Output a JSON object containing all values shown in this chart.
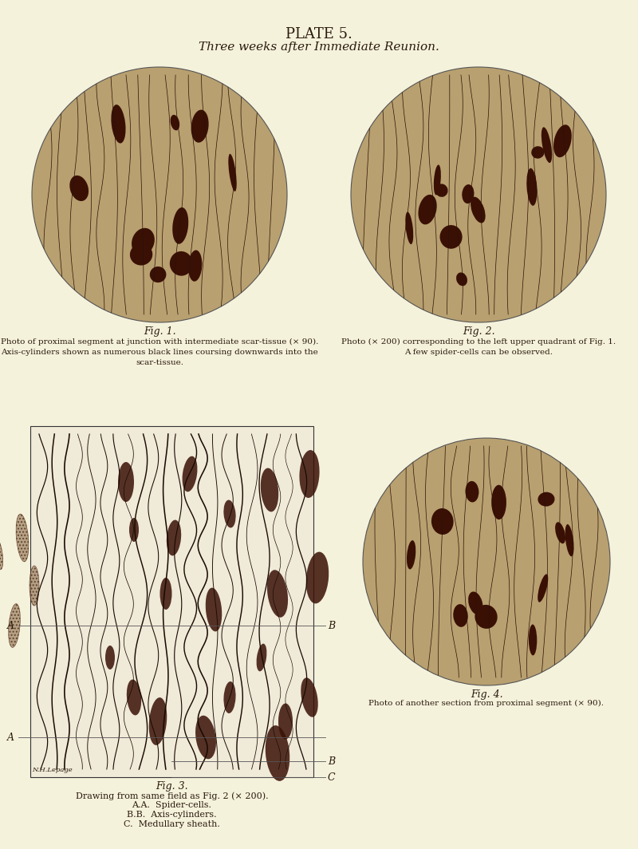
{
  "background_color": "#f5f2dc",
  "plate_title": "PLATE 5.",
  "subtitle": "Three weeks after Immediate Reunion.",
  "fig1_caption_line1": "Photo of proximal segment at junction with intermediate scar-tissue (× 90).",
  "fig1_caption_line2": "Axis-cylinders shown as numerous black lines coursing downwards into the",
  "fig1_caption_line3": "scar-tissue.",
  "fig2_caption_line1": "Photo (× 200) corresponding to the left upper quadrant of Fig. 1.",
  "fig2_caption_line2": "A few spider-cells can be observed.",
  "fig3_label": "Fig. 3.",
  "fig3_caption_line1": "Drawing from same field as Fig. 2 (× 200).",
  "fig3_caption_line2": "A.A.  Spider-cells.",
  "fig3_caption_line3": "B.B.  Axis-cylinders.",
  "fig3_caption_line4": "C.  Medullary sheath.",
  "fig4_label": "Fig. 4.",
  "fig4_caption": "Photo of another section from proximal segment (× 90).",
  "fig1_label": "Fig. 1.",
  "fig2_label": "Fig. 2.",
  "text_color": "#2a1a0a",
  "line_color": "#3a2010"
}
